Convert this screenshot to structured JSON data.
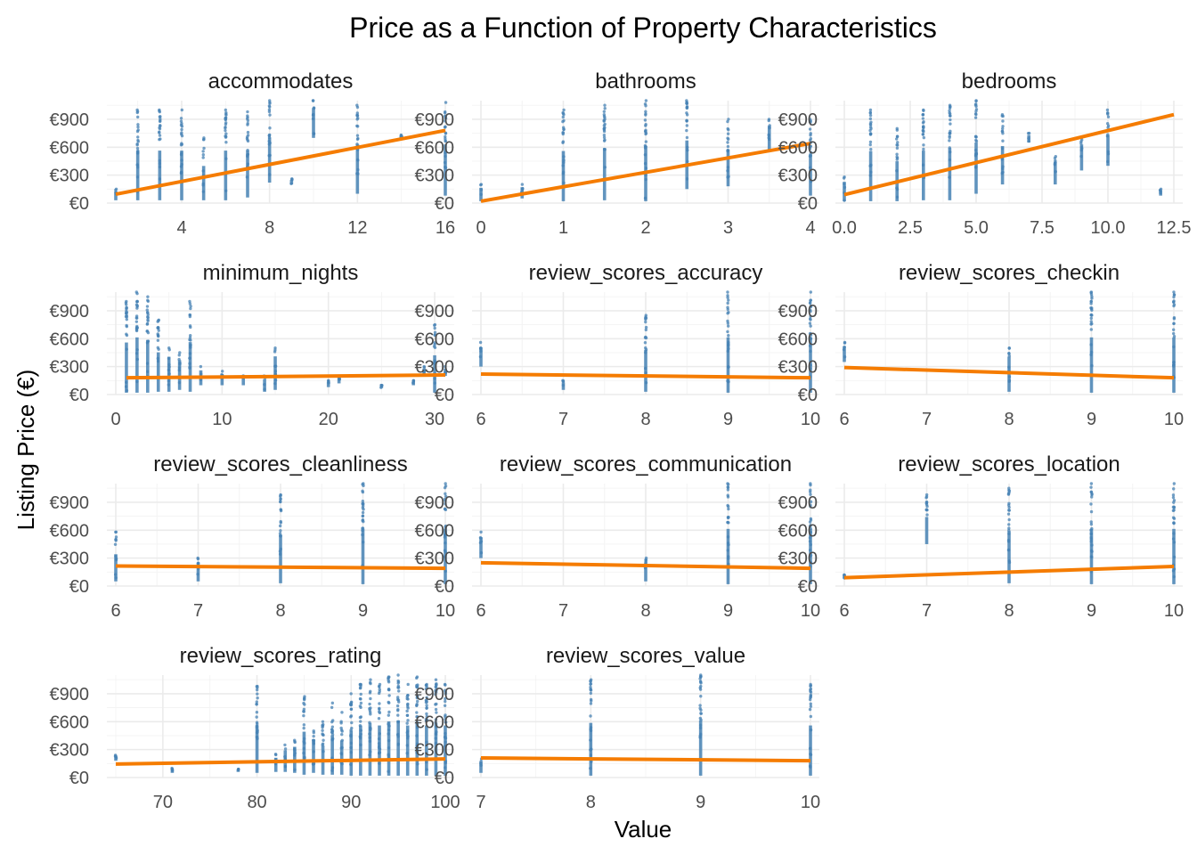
{
  "chart_data": {
    "type": "scatter",
    "title": "Price as a Function of Property Characteristics",
    "xlabel": "Value",
    "ylabel": "Listing Price (€)",
    "colors": {
      "points": "#4682b4",
      "trend": "#f57c00",
      "grid": "#ebebeb"
    },
    "y_axis": {
      "range": [
        0,
        1100
      ],
      "ticks": [
        0,
        300,
        600,
        900
      ],
      "tick_labels": [
        "€0",
        "€300",
        "€600",
        "€900"
      ]
    },
    "panels": [
      {
        "name": "accommodates",
        "xlim": [
          1,
          16
        ],
        "x_ticks": [
          4,
          8,
          12,
          16
        ],
        "x_tick_labels": [
          "4",
          "8",
          "12",
          "16"
        ],
        "trend": {
          "x": [
            1,
            16
          ],
          "y": [
            95,
            780
          ]
        },
        "columns": [
          {
            "x": 1,
            "min": 30,
            "max": 150
          },
          {
            "x": 2,
            "min": 30,
            "max": 1000
          },
          {
            "x": 3,
            "min": 30,
            "max": 1000
          },
          {
            "x": 4,
            "min": 30,
            "max": 1000
          },
          {
            "x": 5,
            "min": 30,
            "max": 700
          },
          {
            "x": 6,
            "min": 30,
            "max": 1000
          },
          {
            "x": 7,
            "min": 60,
            "max": 980
          },
          {
            "x": 8,
            "min": 220,
            "max": 1100
          },
          {
            "x": 9,
            "min": 200,
            "max": 260
          },
          {
            "x": 10,
            "min": 700,
            "max": 1100
          },
          {
            "x": 12,
            "min": 100,
            "max": 1050
          },
          {
            "x": 14,
            "min": 700,
            "max": 730
          },
          {
            "x": 16,
            "min": 80,
            "max": 1080
          }
        ]
      },
      {
        "name": "bathrooms",
        "xlim": [
          0,
          4
        ],
        "x_ticks": [
          0,
          1,
          2,
          3,
          4
        ],
        "x_tick_labels": [
          "0",
          "1",
          "2",
          "3",
          "4"
        ],
        "trend": {
          "x": [
            0,
            4
          ],
          "y": [
            20,
            640
          ]
        },
        "columns": [
          {
            "x": 0,
            "min": 20,
            "max": 200
          },
          {
            "x": 0.5,
            "min": 50,
            "max": 200
          },
          {
            "x": 1,
            "min": 20,
            "max": 1000
          },
          {
            "x": 1.5,
            "min": 30,
            "max": 1050
          },
          {
            "x": 2,
            "min": 20,
            "max": 1100
          },
          {
            "x": 2.5,
            "min": 150,
            "max": 1100
          },
          {
            "x": 3,
            "min": 180,
            "max": 900
          },
          {
            "x": 3.5,
            "min": 550,
            "max": 900
          },
          {
            "x": 4,
            "min": 80,
            "max": 900
          }
        ]
      },
      {
        "name": "bedrooms",
        "xlim": [
          0,
          12.5
        ],
        "x_ticks": [
          0,
          2.5,
          5,
          7.5,
          10,
          12.5
        ],
        "x_tick_labels": [
          "0.0",
          "2.5",
          "5.0",
          "7.5",
          "10.0",
          "12.5"
        ],
        "trend": {
          "x": [
            0,
            12.5
          ],
          "y": [
            90,
            950
          ]
        },
        "columns": [
          {
            "x": 0,
            "min": 20,
            "max": 280
          },
          {
            "x": 1,
            "min": 20,
            "max": 1000
          },
          {
            "x": 2,
            "min": 20,
            "max": 800
          },
          {
            "x": 3,
            "min": 30,
            "max": 1000
          },
          {
            "x": 4,
            "min": 30,
            "max": 1050
          },
          {
            "x": 5,
            "min": 100,
            "max": 1100
          },
          {
            "x": 6,
            "min": 200,
            "max": 950
          },
          {
            "x": 7,
            "min": 650,
            "max": 750
          },
          {
            "x": 8,
            "min": 200,
            "max": 500
          },
          {
            "x": 9,
            "min": 350,
            "max": 700
          },
          {
            "x": 10,
            "min": 400,
            "max": 1000
          },
          {
            "x": 12,
            "min": 80,
            "max": 150
          }
        ]
      },
      {
        "name": "minimum_nights",
        "xlim": [
          0,
          31
        ],
        "x_ticks": [
          0,
          10,
          20,
          30
        ],
        "x_tick_labels": [
          "0",
          "10",
          "20",
          "30"
        ],
        "trend": {
          "x": [
            1,
            31
          ],
          "y": [
            180,
            210
          ]
        },
        "columns": [
          {
            "x": 1,
            "min": 20,
            "max": 1000
          },
          {
            "x": 2,
            "min": 20,
            "max": 1100
          },
          {
            "x": 3,
            "min": 20,
            "max": 1050
          },
          {
            "x": 4,
            "min": 30,
            "max": 800
          },
          {
            "x": 5,
            "min": 30,
            "max": 500
          },
          {
            "x": 6,
            "min": 50,
            "max": 450
          },
          {
            "x": 7,
            "min": 30,
            "max": 1000
          },
          {
            "x": 8,
            "min": 100,
            "max": 300
          },
          {
            "x": 10,
            "min": 100,
            "max": 250
          },
          {
            "x": 12,
            "min": 100,
            "max": 200
          },
          {
            "x": 14,
            "min": 30,
            "max": 200
          },
          {
            "x": 15,
            "min": 50,
            "max": 500
          },
          {
            "x": 20,
            "min": 80,
            "max": 150
          },
          {
            "x": 21,
            "min": 120,
            "max": 200
          },
          {
            "x": 25,
            "min": 70,
            "max": 100
          },
          {
            "x": 28,
            "min": 100,
            "max": 150
          },
          {
            "x": 29,
            "min": 200,
            "max": 300
          },
          {
            "x": 30,
            "min": 20,
            "max": 750
          },
          {
            "x": 31,
            "min": 200,
            "max": 300
          }
        ]
      },
      {
        "name": "review_scores_accuracy",
        "xlim": [
          6,
          10
        ],
        "x_ticks": [
          6,
          7,
          8,
          9,
          10
        ],
        "x_tick_labels": [
          "6",
          "7",
          "8",
          "9",
          "10"
        ],
        "trend": {
          "x": [
            6,
            10
          ],
          "y": [
            220,
            180
          ]
        },
        "columns": [
          {
            "x": 6,
            "min": 300,
            "max": 560
          },
          {
            "x": 7,
            "min": 50,
            "max": 150
          },
          {
            "x": 8,
            "min": 30,
            "max": 850
          },
          {
            "x": 9,
            "min": 20,
            "max": 1100
          },
          {
            "x": 10,
            "min": 20,
            "max": 1100
          }
        ]
      },
      {
        "name": "review_scores_checkin",
        "xlim": [
          6,
          10
        ],
        "x_ticks": [
          6,
          7,
          8,
          9,
          10
        ],
        "x_tick_labels": [
          "6",
          "7",
          "8",
          "9",
          "10"
        ],
        "trend": {
          "x": [
            6,
            10
          ],
          "y": [
            290,
            180
          ]
        },
        "columns": [
          {
            "x": 6,
            "min": 350,
            "max": 560
          },
          {
            "x": 8,
            "min": 30,
            "max": 500
          },
          {
            "x": 9,
            "min": 20,
            "max": 1100
          },
          {
            "x": 10,
            "min": 20,
            "max": 1100
          }
        ]
      },
      {
        "name": "review_scores_cleanliness",
        "xlim": [
          6,
          10
        ],
        "x_ticks": [
          6,
          7,
          8,
          9,
          10
        ],
        "x_tick_labels": [
          "6",
          "7",
          "8",
          "9",
          "10"
        ],
        "trend": {
          "x": [
            6,
            10
          ],
          "y": [
            215,
            190
          ]
        },
        "columns": [
          {
            "x": 6,
            "min": 50,
            "max": 580
          },
          {
            "x": 7,
            "min": 50,
            "max": 300
          },
          {
            "x": 8,
            "min": 30,
            "max": 980
          },
          {
            "x": 9,
            "min": 20,
            "max": 1100
          },
          {
            "x": 10,
            "min": 20,
            "max": 1100
          }
        ]
      },
      {
        "name": "review_scores_communication",
        "xlim": [
          6,
          10
        ],
        "x_ticks": [
          6,
          7,
          8,
          9,
          10
        ],
        "x_tick_labels": [
          "6",
          "7",
          "8",
          "9",
          "10"
        ],
        "trend": {
          "x": [
            6,
            10
          ],
          "y": [
            250,
            190
          ]
        },
        "columns": [
          {
            "x": 6,
            "min": 300,
            "max": 580
          },
          {
            "x": 8,
            "min": 50,
            "max": 300
          },
          {
            "x": 9,
            "min": 20,
            "max": 1100
          },
          {
            "x": 10,
            "min": 20,
            "max": 1100
          }
        ]
      },
      {
        "name": "review_scores_location",
        "xlim": [
          6,
          10
        ],
        "x_ticks": [
          6,
          7,
          8,
          9,
          10
        ],
        "x_tick_labels": [
          "6",
          "7",
          "8",
          "9",
          "10"
        ],
        "trend": {
          "x": [
            6,
            10
          ],
          "y": [
            90,
            210
          ]
        },
        "columns": [
          {
            "x": 6,
            "min": 80,
            "max": 120
          },
          {
            "x": 7,
            "min": 450,
            "max": 980
          },
          {
            "x": 8,
            "min": 30,
            "max": 1050
          },
          {
            "x": 9,
            "min": 20,
            "max": 1100
          },
          {
            "x": 10,
            "min": 20,
            "max": 1100
          }
        ]
      },
      {
        "name": "review_scores_rating",
        "xlim": [
          65,
          100
        ],
        "x_ticks": [
          70,
          80,
          90,
          100
        ],
        "x_tick_labels": [
          "70",
          "80",
          "90",
          "100"
        ],
        "trend": {
          "x": [
            65,
            100
          ],
          "y": [
            145,
            200
          ]
        },
        "columns": [
          {
            "x": 65,
            "min": 180,
            "max": 240
          },
          {
            "x": 71,
            "min": 50,
            "max": 100
          },
          {
            "x": 78,
            "min": 60,
            "max": 90
          },
          {
            "x": 80,
            "min": 50,
            "max": 980
          },
          {
            "x": 82,
            "min": 60,
            "max": 250
          },
          {
            "x": 83,
            "min": 60,
            "max": 350
          },
          {
            "x": 84,
            "min": 50,
            "max": 400
          },
          {
            "x": 85,
            "min": 30,
            "max": 870
          },
          {
            "x": 86,
            "min": 50,
            "max": 500
          },
          {
            "x": 87,
            "min": 30,
            "max": 600
          },
          {
            "x": 88,
            "min": 30,
            "max": 800
          },
          {
            "x": 89,
            "min": 30,
            "max": 700
          },
          {
            "x": 90,
            "min": 20,
            "max": 900
          },
          {
            "x": 91,
            "min": 20,
            "max": 1000
          },
          {
            "x": 92,
            "min": 20,
            "max": 1050
          },
          {
            "x": 93,
            "min": 20,
            "max": 1000
          },
          {
            "x": 94,
            "min": 20,
            "max": 1080
          },
          {
            "x": 95,
            "min": 20,
            "max": 1100
          },
          {
            "x": 96,
            "min": 20,
            "max": 1000
          },
          {
            "x": 97,
            "min": 20,
            "max": 1080
          },
          {
            "x": 98,
            "min": 20,
            "max": 1000
          },
          {
            "x": 99,
            "min": 20,
            "max": 1050
          },
          {
            "x": 100,
            "min": 20,
            "max": 1000
          }
        ]
      },
      {
        "name": "review_scores_value",
        "xlim": [
          7,
          10
        ],
        "x_ticks": [
          7,
          8,
          9,
          10
        ],
        "x_tick_labels": [
          "7",
          "8",
          "9",
          "10"
        ],
        "trend": {
          "x": [
            7,
            10
          ],
          "y": [
            210,
            180
          ]
        },
        "columns": [
          {
            "x": 7,
            "min": 50,
            "max": 200
          },
          {
            "x": 8,
            "min": 20,
            "max": 1050
          },
          {
            "x": 9,
            "min": 20,
            "max": 1100
          },
          {
            "x": 10,
            "min": 20,
            "max": 1000
          }
        ]
      }
    ]
  }
}
